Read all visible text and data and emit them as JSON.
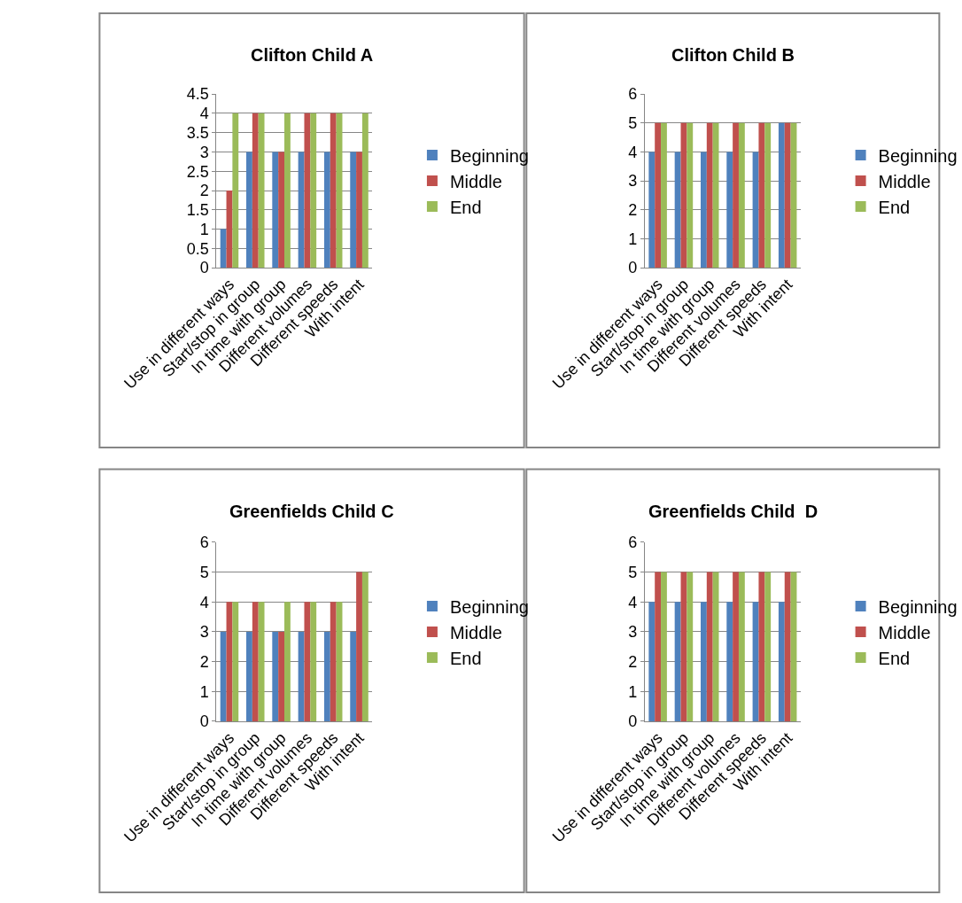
{
  "chart_data": [
    {
      "type": "bar",
      "title": "Clifton Child A",
      "categories": [
        "Use in different ways",
        "Start/stop in group",
        "In time with group",
        "Different volumes",
        "Different speeds",
        "With intent"
      ],
      "ylim": [
        0,
        4.5
      ],
      "yticks": [
        0,
        0.5,
        1,
        1.5,
        2,
        2.5,
        3,
        3.5,
        4,
        4.5
      ],
      "grid": "y",
      "legend": "right",
      "series": [
        {
          "name": "Beginning",
          "color": "#4f81bd",
          "values": [
            1,
            3,
            3,
            3,
            3,
            3
          ]
        },
        {
          "name": "Middle",
          "color": "#c0504d",
          "values": [
            2,
            4,
            3,
            4,
            4,
            3
          ]
        },
        {
          "name": "End",
          "color": "#9bbb59",
          "values": [
            4,
            4,
            4,
            4,
            4,
            4
          ]
        }
      ]
    },
    {
      "type": "bar",
      "title": "Clifton Child B",
      "categories": [
        "Use in different ways",
        "Start/stop in group",
        "In time with group",
        "Different volumes",
        "Different speeds",
        "With intent"
      ],
      "ylim": [
        0,
        6
      ],
      "yticks": [
        0,
        1,
        2,
        3,
        4,
        5,
        6
      ],
      "grid": "y",
      "legend": "right",
      "series": [
        {
          "name": "Beginning",
          "color": "#4f81bd",
          "values": [
            4,
            4,
            4,
            4,
            4,
            5
          ]
        },
        {
          "name": "Middle",
          "color": "#c0504d",
          "values": [
            5,
            5,
            5,
            5,
            5,
            5
          ]
        },
        {
          "name": "End",
          "color": "#9bbb59",
          "values": [
            5,
            5,
            5,
            5,
            5,
            5
          ]
        }
      ]
    },
    {
      "type": "bar",
      "title": "Greenfields Child C",
      "categories": [
        "Use in different ways",
        "Start/stop in group",
        "In time with group",
        "Different volumes",
        "Different speeds",
        "With intent"
      ],
      "ylim": [
        0,
        6
      ],
      "yticks": [
        0,
        1,
        2,
        3,
        4,
        5,
        6
      ],
      "grid": "y",
      "legend": "right",
      "series": [
        {
          "name": "Beginning",
          "color": "#4f81bd",
          "values": [
            3,
            3,
            3,
            3,
            3,
            3
          ]
        },
        {
          "name": "Middle",
          "color": "#c0504d",
          "values": [
            4,
            4,
            3,
            4,
            4,
            5
          ]
        },
        {
          "name": "End",
          "color": "#9bbb59",
          "values": [
            4,
            4,
            4,
            4,
            4,
            5
          ]
        }
      ]
    },
    {
      "type": "bar",
      "title": "Greenfields Child  D",
      "categories": [
        "Use in different ways",
        "Start/stop in group",
        "In time with group",
        "Different volumes",
        "Different speeds",
        "With intent"
      ],
      "ylim": [
        0,
        6
      ],
      "yticks": [
        0,
        1,
        2,
        3,
        4,
        5,
        6
      ],
      "grid": "y",
      "legend": "right",
      "series": [
        {
          "name": "Beginning",
          "color": "#4f81bd",
          "values": [
            4,
            4,
            4,
            4,
            4,
            4
          ]
        },
        {
          "name": "Middle",
          "color": "#c0504d",
          "values": [
            5,
            5,
            5,
            5,
            5,
            5
          ]
        },
        {
          "name": "End",
          "color": "#9bbb59",
          "values": [
            5,
            5,
            5,
            5,
            5,
            5
          ]
        }
      ]
    }
  ]
}
